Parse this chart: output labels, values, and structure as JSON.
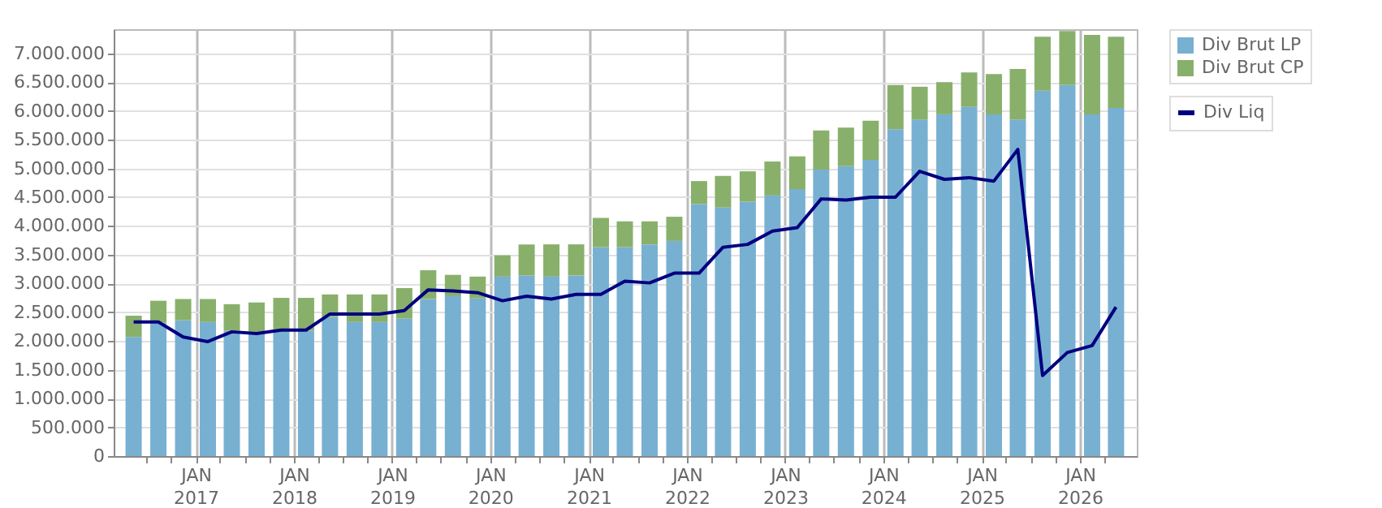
{
  "chart_data": {
    "type": "bar",
    "stacked": true,
    "x": [
      "2016-05-15",
      "2016-08-15",
      "2016-11-15",
      "2017-02-15",
      "2017-05-15",
      "2017-08-15",
      "2017-11-15",
      "2018-02-15",
      "2018-05-15",
      "2018-08-15",
      "2018-11-15",
      "2019-02-15",
      "2019-05-15",
      "2019-08-15",
      "2019-11-15",
      "2020-02-15",
      "2020-05-15",
      "2020-08-15",
      "2020-11-15",
      "2021-02-15",
      "2021-05-15",
      "2021-08-15",
      "2021-11-15",
      "2022-02-15",
      "2022-05-15",
      "2022-08-15",
      "2022-11-15",
      "2023-02-15",
      "2023-05-15",
      "2023-08-15",
      "2023-11-15",
      "2024-02-15",
      "2024-05-15",
      "2024-08-15",
      "2024-11-15",
      "2025-02-15",
      "2025-05-15",
      "2025-08-15",
      "2025-11-15",
      "2026-02-15",
      "2026-05-15"
    ],
    "series": [
      {
        "name": "Div Brut LP",
        "color": "#78b0d2",
        "values": [
          2070000,
          2320000,
          2360000,
          2330000,
          2180000,
          2160000,
          2180000,
          2180000,
          2420000,
          2330000,
          2330000,
          2390000,
          2730000,
          2780000,
          2740000,
          3120000,
          3140000,
          3120000,
          3140000,
          3630000,
          3630000,
          3680000,
          3740000,
          4380000,
          4320000,
          4420000,
          4530000,
          4640000,
          4980000,
          5040000,
          5150000,
          5680000,
          5850000,
          5940000,
          6070000,
          5940000,
          5850000,
          6350000,
          6450000,
          5940000,
          6050000
        ]
      },
      {
        "name": "Div Brut CP",
        "color": "#89b06b",
        "values": [
          370000,
          380000,
          370000,
          400000,
          460000,
          510000,
          570000,
          570000,
          390000,
          480000,
          480000,
          530000,
          500000,
          370000,
          380000,
          370000,
          540000,
          560000,
          540000,
          510000,
          450000,
          400000,
          420000,
          400000,
          550000,
          530000,
          590000,
          570000,
          680000,
          670000,
          680000,
          770000,
          570000,
          560000,
          600000,
          700000,
          880000,
          940000,
          940000,
          1380000,
          1240000
        ]
      },
      {
        "name": "Div Liq",
        "type": "line",
        "color": "#00007f",
        "values": [
          2330000,
          2330000,
          2070000,
          1990000,
          2160000,
          2130000,
          2190000,
          2190000,
          2470000,
          2470000,
          2470000,
          2530000,
          2890000,
          2870000,
          2840000,
          2700000,
          2780000,
          2730000,
          2810000,
          2810000,
          3040000,
          3010000,
          3180000,
          3180000,
          3630000,
          3680000,
          3910000,
          3970000,
          4470000,
          4450000,
          4500000,
          4500000,
          4950000,
          4810000,
          4840000,
          4780000,
          5330000,
          1400000,
          1800000,
          1920000,
          2590000
        ]
      }
    ],
    "xlim": [
      "2016-04-01",
      "2026-07-01"
    ],
    "xticks": [
      {
        "value": "2016-07-01",
        "label": null
      },
      {
        "value": "2016-10-01",
        "label": null
      },
      {
        "value": "2017-01-01",
        "label": "JAN 2017"
      },
      {
        "value": "2017-04-01",
        "label": null
      },
      {
        "value": "2017-07-01",
        "label": null
      },
      {
        "value": "2017-10-01",
        "label": null
      },
      {
        "value": "2018-01-01",
        "label": "JAN 2018"
      },
      {
        "value": "2018-04-01",
        "label": null
      },
      {
        "value": "2018-07-01",
        "label": null
      },
      {
        "value": "2018-10-01",
        "label": null
      },
      {
        "value": "2019-01-01",
        "label": "JAN 2019"
      },
      {
        "value": "2019-04-01",
        "label": null
      },
      {
        "value": "2019-07-01",
        "label": null
      },
      {
        "value": "2019-10-01",
        "label": null
      },
      {
        "value": "2020-01-01",
        "label": "JAN 2020"
      },
      {
        "value": "2020-04-01",
        "label": null
      },
      {
        "value": "2020-07-01",
        "label": null
      },
      {
        "value": "2020-10-01",
        "label": null
      },
      {
        "value": "2021-01-01",
        "label": "JAN 2021"
      },
      {
        "value": "2021-04-01",
        "label": null
      },
      {
        "value": "2021-07-01",
        "label": null
      },
      {
        "value": "2021-10-01",
        "label": null
      },
      {
        "value": "2022-01-01",
        "label": "JAN 2022"
      },
      {
        "value": "2022-04-01",
        "label": null
      },
      {
        "value": "2022-07-01",
        "label": null
      },
      {
        "value": "2022-10-01",
        "label": null
      },
      {
        "value": "2023-01-01",
        "label": "JAN 2023"
      },
      {
        "value": "2023-04-01",
        "label": null
      },
      {
        "value": "2023-07-01",
        "label": null
      },
      {
        "value": "2023-10-01",
        "label": null
      },
      {
        "value": "2024-01-01",
        "label": "JAN 2024"
      },
      {
        "value": "2024-04-01",
        "label": null
      },
      {
        "value": "2024-07-01",
        "label": null
      },
      {
        "value": "2024-10-01",
        "label": null
      },
      {
        "value": "2025-01-01",
        "label": "JAN 2025"
      },
      {
        "value": "2025-04-01",
        "label": null
      },
      {
        "value": "2025-07-01",
        "label": null
      },
      {
        "value": "2025-10-01",
        "label": null
      },
      {
        "value": "2026-01-01",
        "label": "JAN 2026"
      },
      {
        "value": "2026-04-01",
        "label": null
      }
    ],
    "ylim": [
      0,
      7420000
    ],
    "yticks": [
      0,
      {
        "value": 500000,
        "label": "500.000"
      },
      {
        "value": 1000000,
        "label": "1.000.000"
      },
      {
        "value": 1500000,
        "label": "1.500.000"
      },
      {
        "value": 2000000,
        "label": "2.000.000"
      },
      {
        "value": 2500000,
        "label": "2.500.000"
      },
      {
        "value": 3000000,
        "label": "3.000.000"
      },
      {
        "value": 3500000,
        "label": "3.500.000"
      },
      {
        "value": 4000000,
        "label": "4.000.000"
      },
      {
        "value": 4500000,
        "label": "4.500.000"
      },
      {
        "value": 5000000,
        "label": "5.000.000"
      },
      {
        "value": 5500000,
        "label": "5.500.000"
      },
      {
        "value": 6000000,
        "label": "6.000.000"
      },
      {
        "value": 6500000,
        "label": "6.500.000"
      },
      {
        "value": 7000000,
        "label": "7.000.000"
      }
    ],
    "grid": true,
    "legend": "top right",
    "line_style": "solid",
    "marker": "none"
  }
}
